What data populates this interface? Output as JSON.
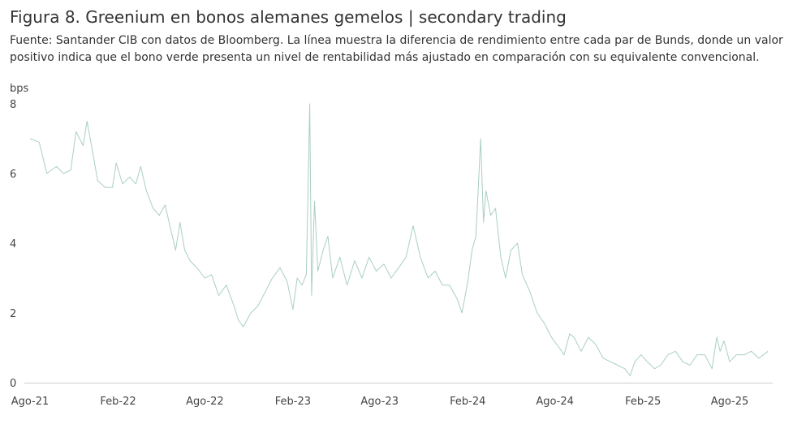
{
  "title": "Figura 8. Greenium en bonos alemanes gemelos | secondary trading",
  "subtitle": "Fuente: Santander CIB con datos de Bloomberg. La línea muestra la diferencia de rendimiento entre cada par de Bunds, donde un valor positivo indica que el bono verde presenta un nivel de rentabilidad más ajustado en comparación con su equivalente convencional.",
  "colors": {
    "line": "#a9cfc2",
    "axis": "#cccccc",
    "text": "#333333"
  },
  "chart_data": {
    "type": "line",
    "title": "Figura 8. Greenium en bonos alemanes gemelos | secondary trading",
    "ylabel": "bps",
    "xlabel": "",
    "ylim": [
      0,
      8
    ],
    "yticks": [
      0,
      2,
      4,
      6,
      8
    ],
    "xlim": [
      "2021-08-01",
      "2025-10-31"
    ],
    "xticks": [
      {
        "date": "2021-08-01",
        "label": "Ago-21"
      },
      {
        "date": "2022-02-01",
        "label": "Feb-22"
      },
      {
        "date": "2022-08-01",
        "label": "Ago-22"
      },
      {
        "date": "2023-02-01",
        "label": "Feb-23"
      },
      {
        "date": "2023-08-01",
        "label": "Ago-23"
      },
      {
        "date": "2024-02-01",
        "label": "Feb-24"
      },
      {
        "date": "2024-08-01",
        "label": "Ago-24"
      },
      {
        "date": "2025-02-01",
        "label": "Feb-25"
      },
      {
        "date": "2025-08-01",
        "label": "Ago-25"
      }
    ],
    "grid": false,
    "series": [
      {
        "name": "",
        "color": "#a9cfc2",
        "points": [
          [
            "2021-08-01",
            7.0
          ],
          [
            "2021-08-20",
            6.9
          ],
          [
            "2021-09-05",
            6.0
          ],
          [
            "2021-09-25",
            6.2
          ],
          [
            "2021-10-10",
            6.0
          ],
          [
            "2021-10-25",
            6.1
          ],
          [
            "2021-11-05",
            7.2
          ],
          [
            "2021-11-20",
            6.8
          ],
          [
            "2021-11-28",
            7.5
          ],
          [
            "2021-12-10",
            6.6
          ],
          [
            "2021-12-20",
            5.8
          ],
          [
            "2022-01-05",
            5.6
          ],
          [
            "2022-01-20",
            5.6
          ],
          [
            "2022-01-28",
            6.3
          ],
          [
            "2022-02-10",
            5.7
          ],
          [
            "2022-02-25",
            5.9
          ],
          [
            "2022-03-10",
            5.7
          ],
          [
            "2022-03-20",
            6.2
          ],
          [
            "2022-04-01",
            5.5
          ],
          [
            "2022-04-15",
            5.0
          ],
          [
            "2022-04-28",
            4.8
          ],
          [
            "2022-05-10",
            5.1
          ],
          [
            "2022-05-20",
            4.5
          ],
          [
            "2022-06-01",
            3.8
          ],
          [
            "2022-06-10",
            4.6
          ],
          [
            "2022-06-20",
            3.8
          ],
          [
            "2022-07-01",
            3.5
          ],
          [
            "2022-07-15",
            3.3
          ],
          [
            "2022-08-01",
            3.0
          ],
          [
            "2022-08-15",
            3.1
          ],
          [
            "2022-08-30",
            2.5
          ],
          [
            "2022-09-15",
            2.8
          ],
          [
            "2022-10-01",
            2.2
          ],
          [
            "2022-10-10",
            1.8
          ],
          [
            "2022-10-20",
            1.6
          ],
          [
            "2022-11-05",
            2.0
          ],
          [
            "2022-11-20",
            2.2
          ],
          [
            "2022-12-05",
            2.6
          ],
          [
            "2022-12-20",
            3.0
          ],
          [
            "2023-01-05",
            3.3
          ],
          [
            "2023-01-20",
            2.9
          ],
          [
            "2023-02-01",
            2.1
          ],
          [
            "2023-02-10",
            3.0
          ],
          [
            "2023-02-20",
            2.8
          ],
          [
            "2023-03-01",
            3.1
          ],
          [
            "2023-03-08",
            8.0
          ],
          [
            "2023-03-12",
            2.5
          ],
          [
            "2023-03-18",
            5.2
          ],
          [
            "2023-03-25",
            3.2
          ],
          [
            "2023-04-05",
            3.8
          ],
          [
            "2023-04-15",
            4.2
          ],
          [
            "2023-04-25",
            3.0
          ],
          [
            "2023-05-10",
            3.6
          ],
          [
            "2023-05-25",
            2.8
          ],
          [
            "2023-06-10",
            3.5
          ],
          [
            "2023-06-25",
            3.0
          ],
          [
            "2023-07-10",
            3.6
          ],
          [
            "2023-07-25",
            3.2
          ],
          [
            "2023-08-10",
            3.4
          ],
          [
            "2023-08-25",
            3.0
          ],
          [
            "2023-09-10",
            3.3
          ],
          [
            "2023-09-25",
            3.6
          ],
          [
            "2023-10-10",
            4.5
          ],
          [
            "2023-10-25",
            3.6
          ],
          [
            "2023-11-10",
            3.0
          ],
          [
            "2023-11-25",
            3.2
          ],
          [
            "2023-12-10",
            2.8
          ],
          [
            "2023-12-25",
            2.8
          ],
          [
            "2024-01-10",
            2.4
          ],
          [
            "2024-01-20",
            2.0
          ],
          [
            "2024-02-01",
            2.9
          ],
          [
            "2024-02-10",
            3.8
          ],
          [
            "2024-02-18",
            4.2
          ],
          [
            "2024-02-28",
            7.0
          ],
          [
            "2024-03-05",
            4.6
          ],
          [
            "2024-03-10",
            5.5
          ],
          [
            "2024-03-20",
            4.8
          ],
          [
            "2024-03-30",
            5.0
          ],
          [
            "2024-04-10",
            3.6
          ],
          [
            "2024-04-20",
            3.0
          ],
          [
            "2024-05-01",
            3.8
          ],
          [
            "2024-05-15",
            4.0
          ],
          [
            "2024-05-25",
            3.1
          ],
          [
            "2024-06-10",
            2.6
          ],
          [
            "2024-06-25",
            2.0
          ],
          [
            "2024-07-10",
            1.7
          ],
          [
            "2024-07-25",
            1.3
          ],
          [
            "2024-08-10",
            1.0
          ],
          [
            "2024-08-20",
            0.8
          ],
          [
            "2024-09-01",
            1.4
          ],
          [
            "2024-09-10",
            1.3
          ],
          [
            "2024-09-25",
            0.9
          ],
          [
            "2024-10-10",
            1.3
          ],
          [
            "2024-10-25",
            1.1
          ],
          [
            "2024-11-10",
            0.7
          ],
          [
            "2024-11-25",
            0.6
          ],
          [
            "2024-12-10",
            0.5
          ],
          [
            "2024-12-25",
            0.4
          ],
          [
            "2025-01-05",
            0.2
          ],
          [
            "2025-01-15",
            0.6
          ],
          [
            "2025-01-28",
            0.8
          ],
          [
            "2025-02-10",
            0.6
          ],
          [
            "2025-02-25",
            0.4
          ],
          [
            "2025-03-10",
            0.5
          ],
          [
            "2025-03-25",
            0.8
          ],
          [
            "2025-04-10",
            0.9
          ],
          [
            "2025-04-25",
            0.6
          ],
          [
            "2025-05-10",
            0.5
          ],
          [
            "2025-05-25",
            0.8
          ],
          [
            "2025-06-10",
            0.8
          ],
          [
            "2025-06-25",
            0.4
          ],
          [
            "2025-07-05",
            1.3
          ],
          [
            "2025-07-12",
            0.9
          ],
          [
            "2025-07-20",
            1.2
          ],
          [
            "2025-08-01",
            0.6
          ],
          [
            "2025-08-15",
            0.8
          ],
          [
            "2025-09-01",
            0.8
          ],
          [
            "2025-09-15",
            0.9
          ],
          [
            "2025-10-01",
            0.7
          ],
          [
            "2025-10-20",
            0.9
          ]
        ]
      }
    ]
  }
}
